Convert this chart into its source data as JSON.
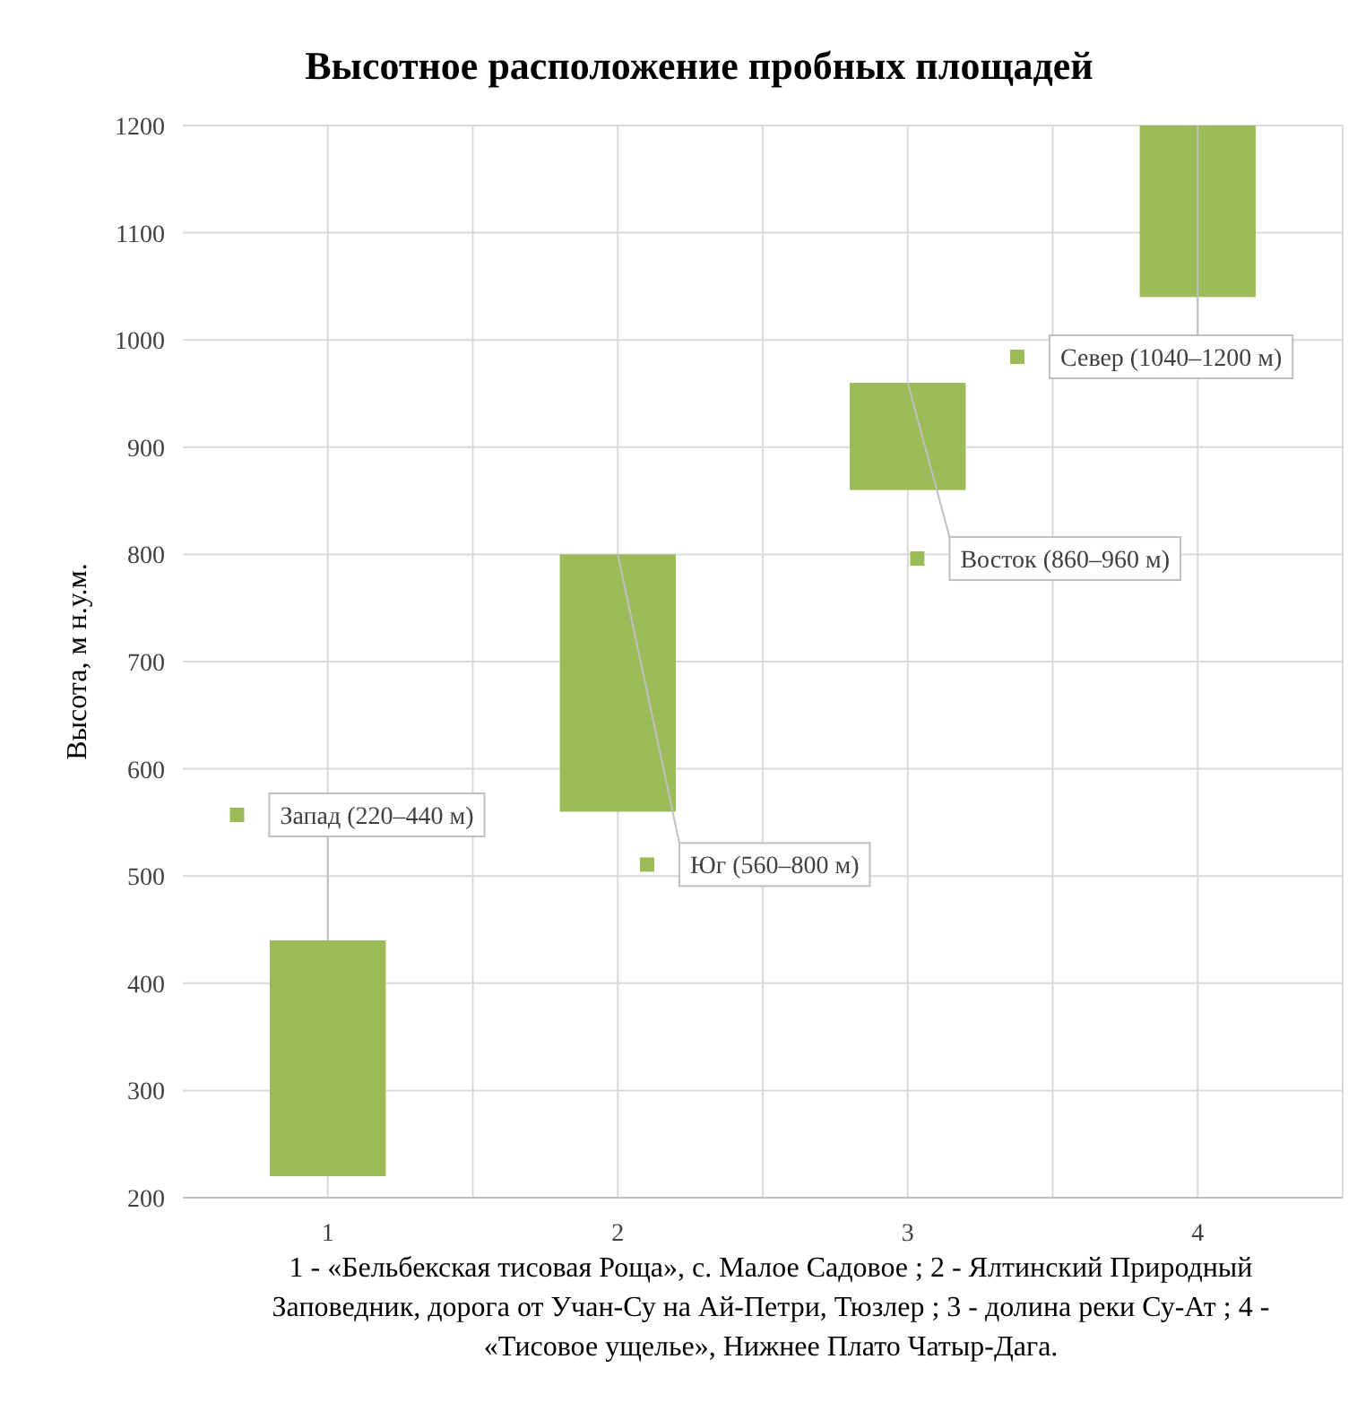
{
  "chart_data": {
    "type": "bar",
    "title": "Высотное расположение пробных площадей",
    "ylabel": "Высота, м н.у.м.",
    "xlabel": "1 - «Бельбекская тисовая Роща», с. Малое Садовое ; 2 - Ялтинский Природный Заповедник, дорога от Учан-Су на Ай-Петри, Тюзлер ; 3 - долина реки Су-Ат ; 4 - «Тисовое ущелье», Нижнее Плато Чатыр-Дага.",
    "categories": [
      "1",
      "2",
      "3",
      "4"
    ],
    "base": [
      220,
      560,
      860,
      1040
    ],
    "values": [
      220,
      240,
      100,
      160
    ],
    "color": "#9bbb59",
    "ylim": [
      200,
      1200
    ],
    "yticks": [
      200,
      300,
      400,
      500,
      600,
      700,
      800,
      900,
      1000,
      1100,
      1200
    ],
    "grid": true,
    "annotations": [
      {
        "text": "Запад (220–440 м)",
        "x": "1",
        "y": 440
      },
      {
        "text": "Юг (560–800 м)",
        "x": "2",
        "y": 800
      },
      {
        "text": "Восток (860–960 м)",
        "x": "3",
        "y": 960
      },
      {
        "text": "Север (1040–1200 м)",
        "x": "4",
        "y": 1200
      }
    ]
  }
}
